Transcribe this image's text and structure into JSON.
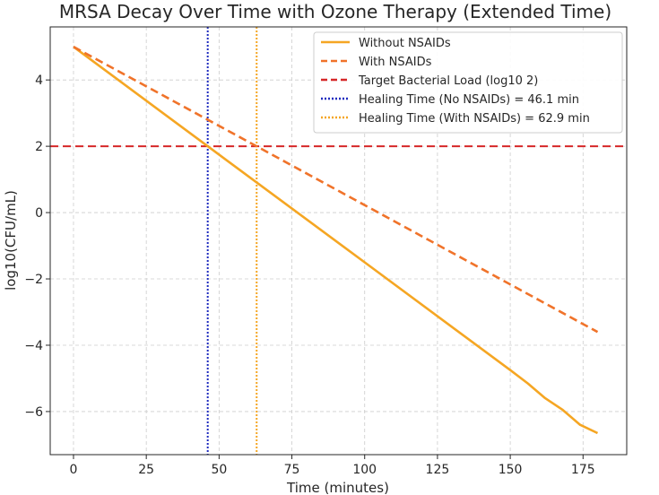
{
  "chart_data": {
    "type": "line",
    "title": "MRSA Decay Over Time with Ozone Therapy (Extended Time)",
    "xlabel": "Time (minutes)",
    "ylabel": "log10(CFU/mL)",
    "xlim": [
      -8,
      190
    ],
    "ylim": [
      -7.3,
      5.6
    ],
    "xticks": [
      0,
      25,
      50,
      75,
      100,
      125,
      150,
      175
    ],
    "xtick_labels": [
      "0",
      "25",
      "50",
      "75",
      "100",
      "125",
      "150",
      "175"
    ],
    "yticks": [
      -6,
      -4,
      -2,
      0,
      2,
      4
    ],
    "ytick_labels": [
      "−6",
      "−4",
      "−2",
      "0",
      "2",
      "4"
    ],
    "grid": true,
    "legend_position": "top-right",
    "series": [
      {
        "name": "Without NSAIDs",
        "color": "#f5a623",
        "style": "solid",
        "x": [
          0,
          46.1,
          100,
          150,
          156,
          162,
          168,
          174,
          180
        ],
        "y": [
          5.0,
          2.0,
          -1.5,
          -4.75,
          -5.15,
          -5.6,
          -5.95,
          -6.4,
          -6.65
        ]
      },
      {
        "name": "With NSAIDs",
        "color": "#f0732a",
        "style": "dashed",
        "x": [
          0,
          62.9,
          180
        ],
        "y": [
          5.0,
          2.0,
          -3.6
        ]
      }
    ],
    "reference_lines": [
      {
        "name": "Target Bacterial Load (log10 2)",
        "orientation": "horizontal",
        "value": 2,
        "color": "#d62728",
        "style": "dashed"
      },
      {
        "name": "Healing Time (No NSAIDs) = 46.1 min",
        "orientation": "vertical",
        "value": 46.1,
        "color": "#1f2bbf",
        "style": "dotted"
      },
      {
        "name": "Healing Time (With NSAIDs) = 62.9 min",
        "orientation": "vertical",
        "value": 62.9,
        "color": "#f5a623",
        "style": "dotted"
      }
    ]
  }
}
